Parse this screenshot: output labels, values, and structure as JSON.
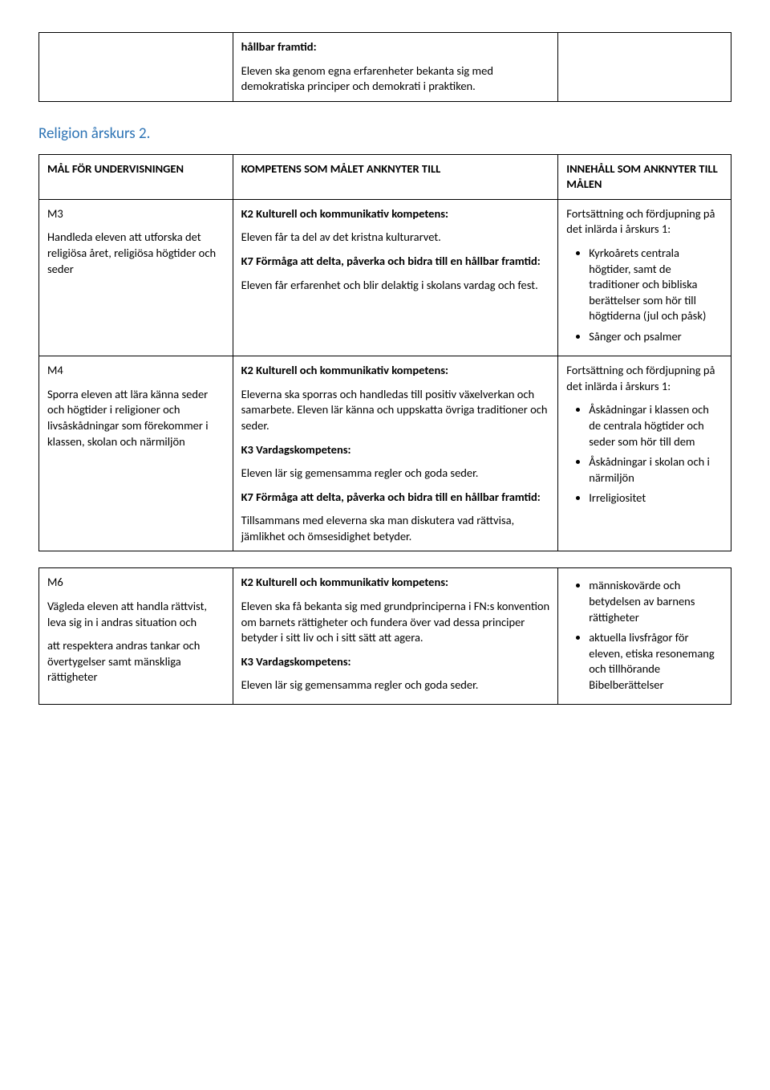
{
  "topTable": {
    "col2": {
      "heading": "hållbar framtid:",
      "body": "Eleven ska genom egna erfarenheter bekanta sig med demokratiska principer och demokrati i praktiken."
    }
  },
  "sectionHeading": "Religion årskurs 2.",
  "headerRow": {
    "c1": "MÅL FÖR UNDERVISNINGEN",
    "c2": "KOMPETENS SOM MÅLET ANKNYTER TILL",
    "c3": "INNEHÅLL SOM ANKNYTER TILL MÅLEN"
  },
  "row_m3": {
    "c1_code": "M3",
    "c1_body": "Handleda eleven att utforska det religiösa året, religiösa högtider och seder",
    "c2_h1": "K2 Kulturell och kommunikativ kompetens:",
    "c2_p1": "Eleven får ta del av det kristna kulturarvet.",
    "c2_h2": "K7 Förmåga att delta, påverka och bidra till en hållbar framtid:",
    "c2_p2": "Eleven får erfarenhet och blir delaktig i skolans vardag och fest.",
    "c3_intro": "Fortsättning och fördjupning på det inlärda i årskurs 1:",
    "c3_items": [
      "Kyrkoårets centrala högtider, samt de traditioner och bibliska berättelser som hör till högtiderna (jul och påsk)",
      "Sånger och psalmer"
    ]
  },
  "row_m4": {
    "c1_code": "M4",
    "c1_body": "Sporra eleven att lära känna seder och högtider i religioner och livsåskådningar som förekommer i klassen, skolan och närmiljön",
    "c2_h1": "K2 Kulturell och kommunikativ kompetens:",
    "c2_p1": "Eleverna ska sporras och handledas till positiv växelverkan och samarbete. Eleven lär känna och uppskatta övriga traditioner och seder.",
    "c2_h2": "K3 Vardagskompetens:",
    "c2_p2": "Eleven lär sig gemensamma regler och goda seder.",
    "c2_h3": "K7 Förmåga att delta, påverka och bidra till en hållbar framtid:",
    "c2_p3": "Tillsammans med eleverna ska man diskutera vad rättvisa, jämlikhet och ömsesidighet betyder.",
    "c3_intro": "Fortsättning och fördjupning på det inlärda i årskurs 1:",
    "c3_items": [
      "Åskådningar i klassen och de centrala högtider och seder som hör till dem",
      "Åskådningar i skolan och i närmiljön",
      "Irreligiositet"
    ]
  },
  "row_m6": {
    "c1_code": "M6",
    "c1_body1": "Vägleda eleven att handla rättvist, leva sig in i andras situation och",
    "c1_body2": "att respektera andras tankar och övertygelser samt mänskliga rättigheter",
    "c2_h1": "K2 Kulturell och kommunikativ kompetens:",
    "c2_p1": "Eleven ska få bekanta sig med grundprinciperna i FN:s konvention om barnets rättigheter och fundera över vad dessa principer betyder i sitt liv och i sitt sätt att agera.",
    "c2_h2": "K3 Vardagskompetens:",
    "c2_p2": "Eleven lär sig gemensamma regler och goda seder.",
    "c3_items": [
      "människovärde och betydelsen av barnens rättigheter",
      "aktuella livsfrågor för eleven, etiska resonemang och tillhörande Bibelberättelser"
    ]
  }
}
